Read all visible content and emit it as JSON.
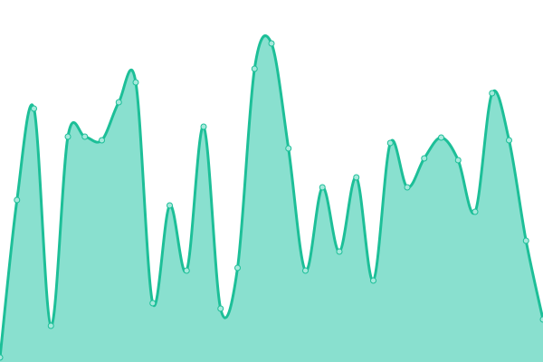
{
  "chart_data": {
    "type": "area",
    "title": "",
    "xlabel": "",
    "ylabel": "",
    "axes_visible": false,
    "grid": false,
    "legend": "none",
    "curve": "smooth",
    "markers": true,
    "ylim": [
      0,
      400
    ],
    "x": [
      0,
      1,
      2,
      3,
      4,
      5,
      6,
      7,
      8,
      9,
      10,
      11,
      12,
      13,
      14,
      15,
      16,
      17,
      18,
      19,
      20,
      21,
      22,
      23,
      24,
      25,
      26,
      27,
      28,
      29,
      30,
      31,
      32
    ],
    "series": [
      {
        "values": [
          5,
          179,
          280,
          40,
          249,
          249,
          245,
          287,
          309,
          65,
          173,
          101,
          260,
          59,
          104,
          324,
          352,
          236,
          101,
          193,
          122,
          204,
          90,
          242,
          193,
          225,
          248,
          223,
          166,
          297,
          245,
          134,
          47
        ],
        "stroke_color": "#1dbf98",
        "fill_color": "#89e0cf",
        "marker_fill": "#a6e9dc",
        "marker_stroke": "#1dbf98"
      }
    ]
  }
}
